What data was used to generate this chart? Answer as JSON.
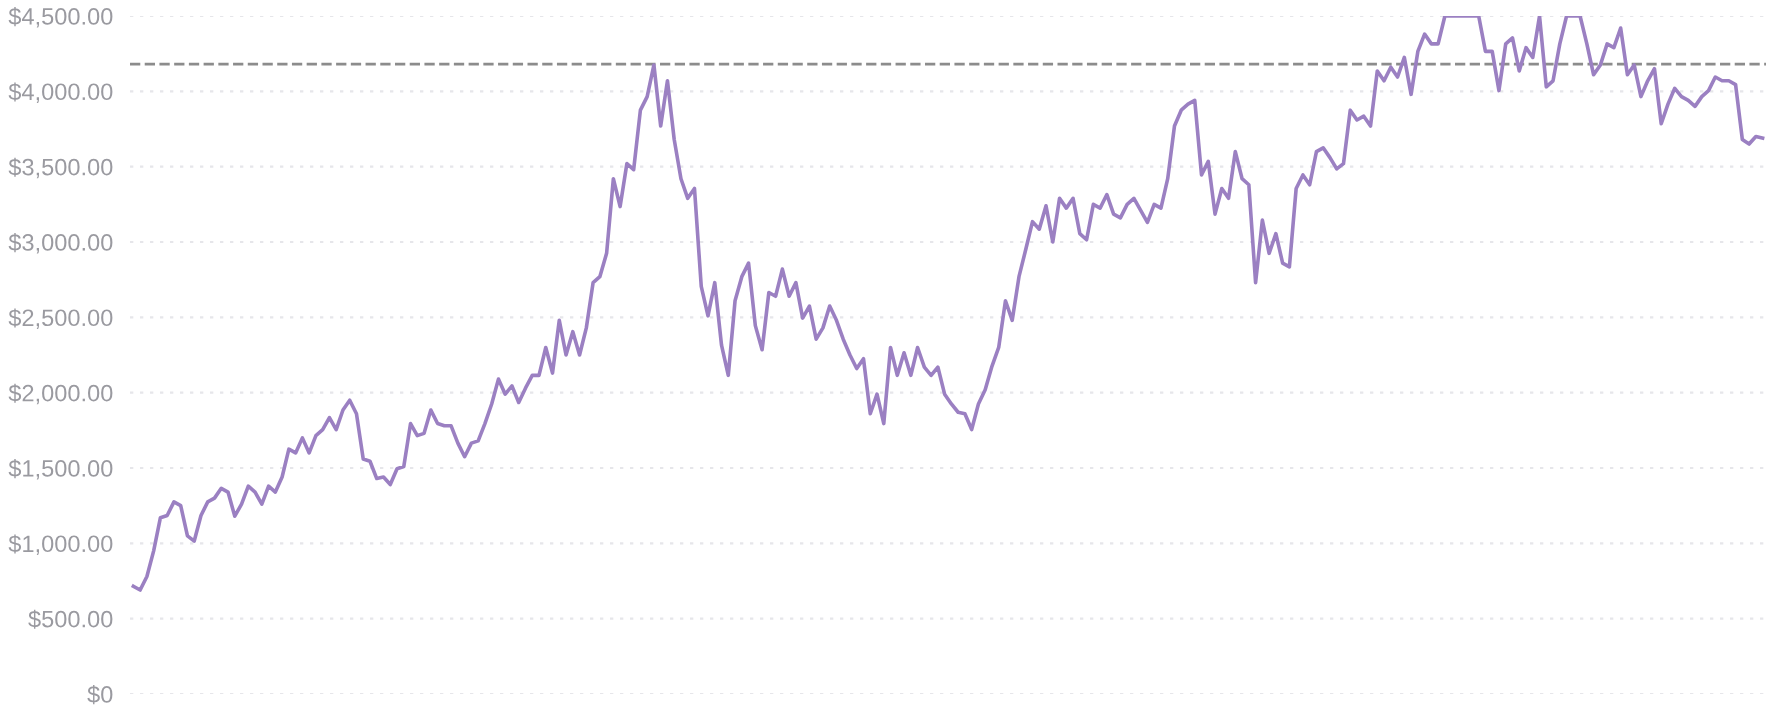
{
  "chart_data": {
    "type": "line",
    "categories": [
      null,
      null,
      null,
      null,
      null,
      null,
      null,
      null,
      null,
      null,
      null,
      null,
      null,
      null,
      null,
      null,
      null,
      null,
      null,
      null,
      null,
      null,
      null,
      null,
      null,
      null,
      null,
      null,
      null,
      null,
      null,
      null,
      null,
      null,
      null,
      null,
      null,
      null,
      null,
      null,
      null,
      null,
      null,
      null,
      null,
      null,
      null,
      null,
      null,
      null,
      null,
      null,
      null,
      null,
      null,
      null,
      null,
      null,
      null,
      null,
      null,
      null,
      null,
      null,
      null,
      null,
      null,
      null,
      null,
      null,
      null,
      null,
      null,
      null,
      null,
      null,
      null,
      null,
      null,
      null,
      null,
      null,
      null,
      null,
      null,
      null,
      null,
      null,
      null,
      null,
      null,
      null,
      null,
      null,
      null,
      null,
      null,
      null,
      null,
      null,
      null,
      null,
      null,
      null,
      null,
      null,
      null,
      null,
      null,
      null,
      null,
      null,
      null,
      null,
      null,
      null,
      null,
      null,
      null,
      null,
      null,
      null,
      null,
      null,
      null,
      null,
      null,
      null,
      null,
      null,
      null,
      null,
      null,
      null,
      null,
      null,
      null,
      null,
      null,
      null,
      null,
      null,
      null,
      null,
      null,
      null,
      null,
      null,
      null,
      null,
      null,
      null,
      null,
      null,
      null,
      null,
      null,
      null,
      null,
      null,
      null,
      null,
      null,
      null,
      null,
      null,
      null,
      null,
      null,
      null,
      null,
      null,
      null,
      null,
      null,
      null,
      null,
      null,
      null,
      null,
      null,
      null,
      null,
      null,
      null,
      null,
      null,
      null,
      null,
      null,
      null,
      null,
      null,
      null,
      null,
      null,
      null,
      null,
      null,
      null,
      null,
      null,
      null,
      null,
      null,
      null,
      null,
      null,
      null,
      null,
      null,
      null,
      null,
      null,
      null,
      null,
      null,
      null,
      null,
      null,
      null,
      null,
      null,
      null,
      null,
      null,
      null,
      null,
      null,
      null,
      null,
      null,
      null,
      null,
      null,
      null,
      null,
      null,
      null,
      null,
      null,
      null
    ],
    "series": [
      {
        "color": "#9b80c2",
        "values": [
          715,
          690,
          780,
          950,
          1170,
          1185,
          1275,
          1250,
          1050,
          1015,
          1185,
          1275,
          1300,
          1365,
          1340,
          1180,
          1260,
          1380,
          1340,
          1260,
          1380,
          1340,
          1440,
          1625,
          1600,
          1700,
          1600,
          1715,
          1755,
          1835,
          1755,
          1885,
          1950,
          1860,
          1560,
          1545,
          1430,
          1440,
          1390,
          1495,
          1510,
          1795,
          1715,
          1730,
          1885,
          1795,
          1780,
          1780,
          1665,
          1575,
          1665,
          1680,
          1795,
          1925,
          2090,
          1990,
          2045,
          1935,
          2030,
          2115,
          2115,
          2300,
          2130,
          2480,
          2250,
          2405,
          2250,
          2430,
          2730,
          2770,
          2925,
          3420,
          3235,
          3520,
          3480,
          3875,
          3965,
          4175,
          3770,
          4070,
          3680,
          3420,
          3290,
          3355,
          2705,
          2510,
          2730,
          2315,
          2115,
          2610,
          2770,
          2860,
          2445,
          2285,
          2665,
          2640,
          2820,
          2640,
          2730,
          2495,
          2575,
          2355,
          2430,
          2575,
          2480,
          2355,
          2250,
          2160,
          2225,
          1860,
          1990,
          1795,
          2300,
          2115,
          2265,
          2115,
          2300,
          2170,
          2115,
          2170,
          1990,
          1925,
          1870,
          1860,
          1755,
          1925,
          2020,
          2175,
          2300,
          2610,
          2480,
          2770,
          2950,
          3135,
          3085,
          3240,
          3000,
          3290,
          3225,
          3290,
          3055,
          3015,
          3250,
          3225,
          3315,
          3185,
          3160,
          3250,
          3290,
          3210,
          3130,
          3250,
          3225,
          3420,
          3770,
          3875,
          3915,
          3940,
          3445,
          3535,
          3185,
          3355,
          3290,
          3600,
          3420,
          3380,
          2730,
          3145,
          2925,
          3055,
          2860,
          2835,
          3355,
          3445,
          3380,
          3600,
          3625,
          3560,
          3485,
          3520,
          3875,
          3810,
          3835,
          3770,
          4135,
          4070,
          4160,
          4095,
          4225,
          3980,
          4265,
          4380,
          4315,
          4315,
          4500,
          4500,
          4500,
          4500,
          4500,
          4500,
          4265,
          4265,
          4005,
          4315,
          4355,
          4135,
          4290,
          4225,
          4500,
          4030,
          4070,
          4315,
          4500,
          4500,
          4500,
          4315,
          4110,
          4175,
          4315,
          4290,
          4420,
          4110,
          4175,
          3965,
          4070,
          4150,
          3785,
          3915,
          4020,
          3965,
          3940,
          3900,
          3965,
          4005,
          4095,
          4070,
          4070,
          4045,
          3680,
          3650,
          3700,
          3690
        ]
      }
    ],
    "ylim": [
      0,
      4500
    ],
    "yticks": [
      {
        "value": 0,
        "label": "$0"
      },
      {
        "value": 500,
        "label": "$500.00"
      },
      {
        "value": 1000,
        "label": "$1,000.00"
      },
      {
        "value": 1500,
        "label": "$1,500.00"
      },
      {
        "value": 2000,
        "label": "$2,000.00"
      },
      {
        "value": 2500,
        "label": "$2,500.00"
      },
      {
        "value": 3000,
        "label": "$3,000.00"
      },
      {
        "value": 3500,
        "label": "$3,500.00"
      },
      {
        "value": 4000,
        "label": "$4,000.00"
      },
      {
        "value": 4500,
        "label": "$4,500.00"
      }
    ],
    "ref_lines": [
      {
        "axis": "y",
        "value": 4180,
        "color": "#8c8c8c",
        "line_style": "dashed"
      }
    ],
    "grid": "y",
    "tick_labels": "y",
    "marker": "none",
    "line_style": "solid"
  }
}
